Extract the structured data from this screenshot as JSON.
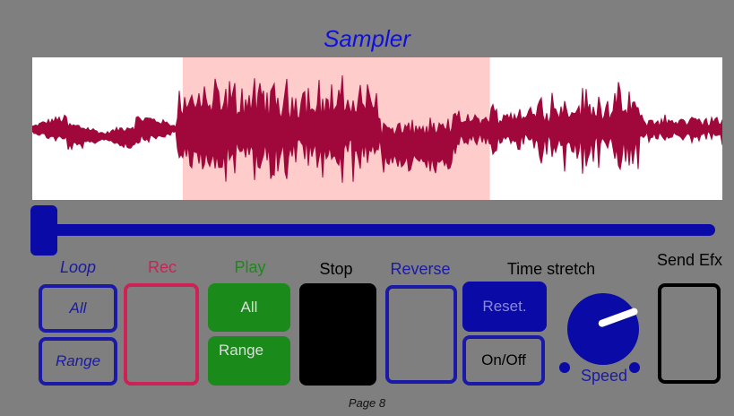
{
  "title": "Sampler",
  "loop": {
    "label": "Loop",
    "all": "All",
    "range": "Range"
  },
  "rec": {
    "label": "Rec"
  },
  "play": {
    "label": "Play",
    "all": "All",
    "range": "Range"
  },
  "stop": {
    "label": "Stop"
  },
  "reverse": {
    "label": "Reverse"
  },
  "timestretch": {
    "label": "Time stretch",
    "reset": "Reset.",
    "onoff": "On/Off",
    "speed": "Speed"
  },
  "sendefx": {
    "label": "Send Efx"
  },
  "page": "Page 8",
  "position_slider": {
    "value": 0
  },
  "selection": {
    "start": 0.218,
    "end": 0.663
  },
  "colors": {
    "accent": "#0a0aa6",
    "waveform": "#a0083c",
    "selection": "#ffcccc",
    "rec": "#cc2255",
    "play": "#1a8a1a"
  }
}
